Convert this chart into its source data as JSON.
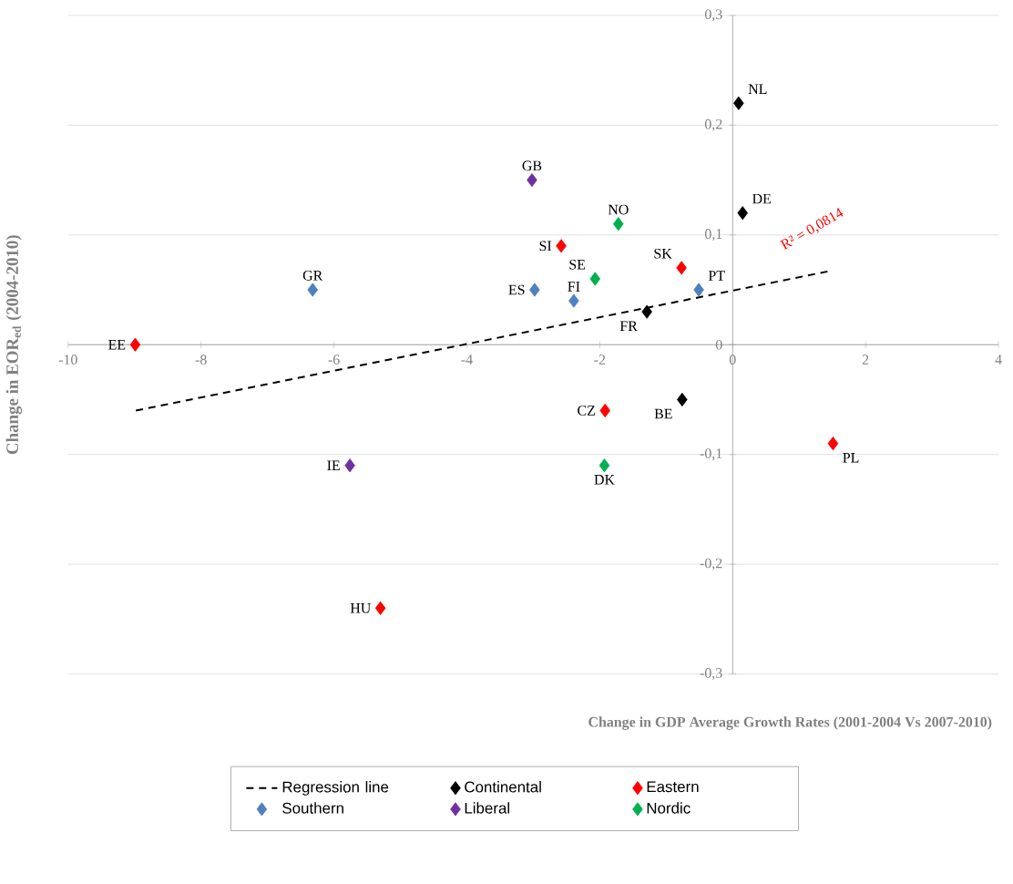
{
  "chart_data": {
    "type": "scatter",
    "xlabel": "Change in GDP Average Growth Rates (2001-2004 Vs 2007-2010)",
    "ylabel": "Change in EOR$_{ed}$ (2004-2010)",
    "xlim": [
      -10,
      4
    ],
    "ylim": [
      -0.3,
      0.3
    ],
    "xticks": [
      -10,
      -8,
      -6,
      -4,
      -2,
      0,
      2,
      4
    ],
    "yticks": [
      {
        "value": -0.3,
        "label": "-0,3"
      },
      {
        "value": -0.2,
        "label": "-0,2"
      },
      {
        "value": -0.1,
        "label": "-0,1"
      },
      0,
      {
        "value": 0.1,
        "label": "0,1"
      },
      {
        "value": 0.2,
        "label": "0,2"
      },
      {
        "value": 0.3,
        "label": "0,3"
      }
    ],
    "grid": "y",
    "legend": "bottom",
    "marker": "diamond",
    "series": [
      {
        "name": "Regression line",
        "type": "line",
        "line_style": "dashed",
        "marker": "none",
        "color": "#000000",
        "x": [
          -8.98,
          1.45
        ],
        "values": [
          -0.06,
          0.067
        ]
      },
      {
        "name": "Continental",
        "color": "#000000",
        "x": [
          0.09,
          0.15,
          -1.29,
          -0.76
        ],
        "values": [
          0.22,
          0.12,
          0.03,
          -0.05
        ]
      },
      {
        "name": "Eastern",
        "color": "#ff0000",
        "x": [
          -8.99,
          -2.58,
          -0.77,
          -1.92,
          1.51,
          -5.3
        ],
        "values": [
          0,
          0.09,
          0.07,
          -0.06,
          -0.09,
          -0.24
        ]
      },
      {
        "name": "Southern",
        "color": "#4f81bd",
        "x": [
          -6.32,
          -2.98,
          -2.39,
          -0.51
        ],
        "values": [
          0.05,
          0.05,
          0.04,
          0.05
        ]
      },
      {
        "name": "Liberal",
        "color": "#7030a0",
        "x": [
          -3.02,
          -5.76
        ],
        "values": [
          0.15,
          -0.11
        ]
      },
      {
        "name": "Nordic",
        "color": "#00b050",
        "x": [
          -1.72,
          -2.07,
          -1.93
        ],
        "values": [
          0.11,
          0.06,
          -0.11
        ]
      }
    ],
    "annotations": [
      {
        "text": "NL",
        "x": 0.09,
        "y": 0.22
      },
      {
        "text": "DE",
        "x": 0.15,
        "y": 0.12
      },
      {
        "text": "FR",
        "x": -1.29,
        "y": 0.03
      },
      {
        "text": "BE",
        "x": -0.76,
        "y": -0.05
      },
      {
        "text": "EE",
        "x": -8.99,
        "y": 0
      },
      {
        "text": "SI",
        "x": -2.58,
        "y": 0.09
      },
      {
        "text": "SK",
        "x": -0.77,
        "y": 0.07
      },
      {
        "text": "CZ",
        "x": -1.92,
        "y": -0.06
      },
      {
        "text": "PL",
        "x": 1.51,
        "y": -0.09
      },
      {
        "text": "HU",
        "x": -5.3,
        "y": -0.24
      },
      {
        "text": "GR",
        "x": -6.32,
        "y": 0.05
      },
      {
        "text": "ES",
        "x": -2.98,
        "y": 0.05
      },
      {
        "text": "FI",
        "x": -2.39,
        "y": 0.04
      },
      {
        "text": "PT",
        "x": -0.51,
        "y": 0.05
      },
      {
        "text": "GB",
        "x": -3.02,
        "y": 0.15
      },
      {
        "text": "IE",
        "x": -5.76,
        "y": -0.11
      },
      {
        "text": "NO",
        "x": -1.72,
        "y": 0.11
      },
      {
        "text": "SE",
        "x": -2.07,
        "y": 0.06
      },
      {
        "text": "DK",
        "x": -1.93,
        "y": -0.11
      },
      "R² = 0,0814"
    ]
  }
}
